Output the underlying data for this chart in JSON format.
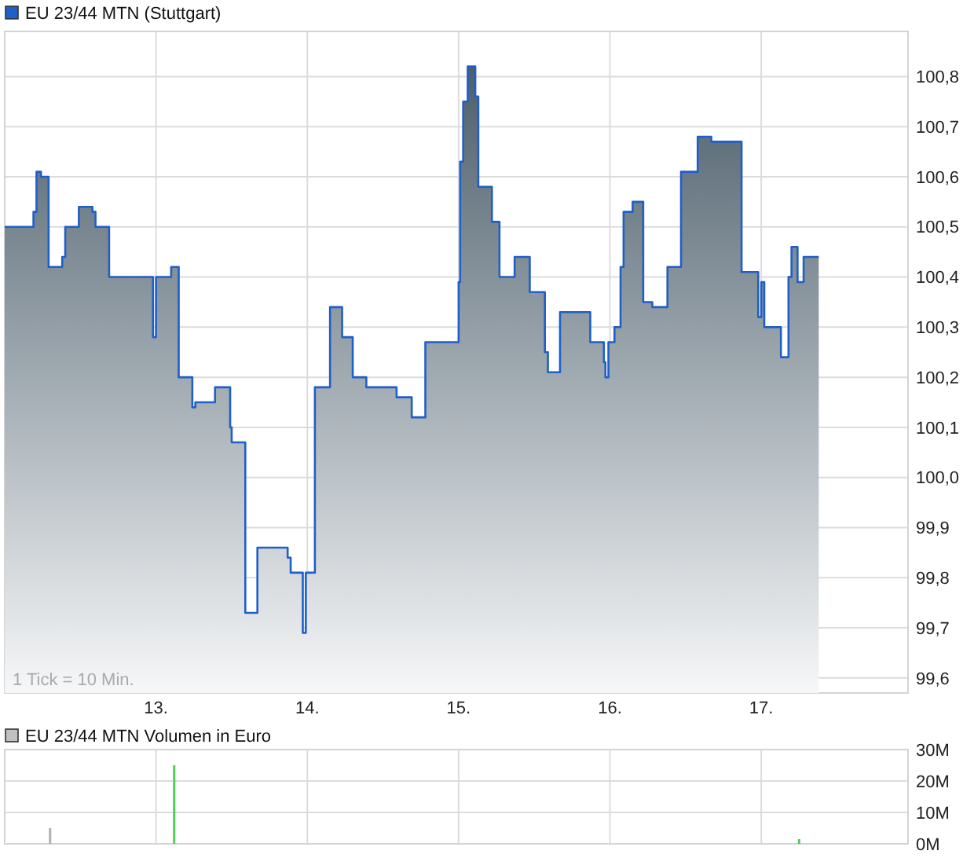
{
  "chart_data": [
    {
      "type": "area",
      "x": [
        12.0,
        12.19,
        12.19,
        12.21,
        12.21,
        12.24,
        12.24,
        12.29,
        12.29,
        12.38,
        12.38,
        12.4,
        12.4,
        12.49,
        12.49,
        12.58,
        12.58,
        12.6,
        12.6,
        12.69,
        12.69,
        12.98,
        12.98,
        13.0,
        13.0,
        13.1,
        13.1,
        13.15,
        13.15,
        13.24,
        13.24,
        13.26,
        13.26,
        13.39,
        13.39,
        13.49,
        13.49,
        13.5,
        13.5,
        13.59,
        13.59,
        13.67,
        13.67,
        13.87,
        13.87,
        13.89,
        13.89,
        13.97,
        13.97,
        13.99,
        13.99,
        14.05,
        14.05,
        14.15,
        14.15,
        14.23,
        14.23,
        14.3,
        14.3,
        14.39,
        14.39,
        14.59,
        14.59,
        14.69,
        14.69,
        14.78,
        14.78,
        15.0,
        15.0,
        15.01,
        15.01,
        15.03,
        15.03,
        15.06,
        15.06,
        15.11,
        15.11,
        15.13,
        15.13,
        15.22,
        15.22,
        15.27,
        15.27,
        15.37,
        15.37,
        15.47,
        15.47,
        15.57,
        15.57,
        15.59,
        15.59,
        15.67,
        15.67,
        15.87,
        15.87,
        15.96,
        15.96,
        15.97,
        15.97,
        15.99,
        15.99,
        16.03,
        16.03,
        16.07,
        16.07,
        16.09,
        16.09,
        16.15,
        16.15,
        16.22,
        16.22,
        16.28,
        16.28,
        16.38,
        16.38,
        16.47,
        16.47,
        16.58,
        16.58,
        16.67,
        16.67,
        16.87,
        16.87,
        16.98,
        16.98,
        17.0,
        17.0,
        17.02,
        17.02,
        17.13,
        17.13,
        17.18,
        17.18,
        17.2,
        17.2,
        17.24,
        17.24,
        17.28,
        17.28,
        17.38
      ],
      "series": [
        {
          "name": "EU 23/44 MTN (Stuttgart)",
          "color": "#1f5fc8",
          "values": [
            100.5,
            100.5,
            100.53,
            100.53,
            100.61,
            100.61,
            100.6,
            100.6,
            100.42,
            100.42,
            100.44,
            100.44,
            100.5,
            100.5,
            100.54,
            100.54,
            100.53,
            100.53,
            100.5,
            100.5,
            100.4,
            100.4,
            100.28,
            100.28,
            100.4,
            100.4,
            100.42,
            100.42,
            100.2,
            100.2,
            100.14,
            100.14,
            100.15,
            100.15,
            100.18,
            100.18,
            100.1,
            100.1,
            100.07,
            100.07,
            99.73,
            99.73,
            99.86,
            99.86,
            99.84,
            99.84,
            99.81,
            99.81,
            99.69,
            99.69,
            99.81,
            99.81,
            100.18,
            100.18,
            100.34,
            100.34,
            100.28,
            100.28,
            100.2,
            100.2,
            100.18,
            100.18,
            100.16,
            100.16,
            100.12,
            100.12,
            100.27,
            100.27,
            100.39,
            100.39,
            100.63,
            100.63,
            100.75,
            100.75,
            100.82,
            100.82,
            100.76,
            100.76,
            100.58,
            100.58,
            100.51,
            100.51,
            100.4,
            100.4,
            100.44,
            100.44,
            100.37,
            100.37,
            100.25,
            100.25,
            100.21,
            100.21,
            100.33,
            100.33,
            100.27,
            100.27,
            100.23,
            100.23,
            100.2,
            100.2,
            100.27,
            100.27,
            100.3,
            100.3,
            100.42,
            100.42,
            100.53,
            100.53,
            100.55,
            100.55,
            100.35,
            100.35,
            100.34,
            100.34,
            100.42,
            100.42,
            100.61,
            100.61,
            100.68,
            100.68,
            100.67,
            100.67,
            100.41,
            100.41,
            100.32,
            100.32,
            100.39,
            100.39,
            100.3,
            100.3,
            100.24,
            100.24,
            100.4,
            100.4,
            100.46,
            100.46,
            100.39,
            100.39,
            100.44,
            100.44
          ]
        }
      ],
      "xlim": [
        12.0,
        17.97
      ],
      "xticks": [
        {
          "value": 13,
          "label": "13."
        },
        {
          "value": 14,
          "label": "14."
        },
        {
          "value": 15,
          "label": "15."
        },
        {
          "value": 16,
          "label": "16."
        },
        {
          "value": 17,
          "label": "17."
        }
      ],
      "ylim": [
        99.57,
        100.89
      ],
      "yticks": [
        {
          "value": 99.6,
          "label": "99,6"
        },
        {
          "value": 99.7,
          "label": "99,7"
        },
        {
          "value": 99.8,
          "label": "99,8"
        },
        {
          "value": 99.9,
          "label": "99,9"
        },
        {
          "value": 100.0,
          "label": "100,0"
        },
        {
          "value": 100.1,
          "label": "100,1"
        },
        {
          "value": 100.2,
          "label": "100,2"
        },
        {
          "value": 100.3,
          "label": "100,3"
        },
        {
          "value": 100.4,
          "label": "100,4"
        },
        {
          "value": 100.5,
          "label": "100,5"
        },
        {
          "value": 100.6,
          "label": "100,6"
        },
        {
          "value": 100.7,
          "label": "100,7"
        },
        {
          "value": 100.8,
          "label": "100,8"
        }
      ],
      "grid": true,
      "legend": "top left",
      "annotations": [
        "1 Tick = 10 Min."
      ]
    },
    {
      "type": "bar",
      "x": [
        12.3,
        13.12,
        17.25
      ],
      "series": [
        {
          "name": "EU 23/44 MTN Volumen in Euro",
          "color": "#c0c0c0",
          "colors": [
            "#b0b0b0",
            "#55cc55",
            "#55cc55"
          ],
          "values": [
            5,
            25,
            1.5
          ]
        }
      ],
      "xlim": [
        12.0,
        17.97
      ],
      "xticks": [
        {
          "value": 13,
          "label": null
        },
        {
          "value": 14,
          "label": null
        },
        {
          "value": 15,
          "label": null
        },
        {
          "value": 16,
          "label": null
        },
        {
          "value": 17,
          "label": null
        }
      ],
      "ylim": [
        0,
        30
      ],
      "yticks": [
        {
          "value": 0,
          "label": "0M"
        },
        {
          "value": 10,
          "label": "10M"
        },
        {
          "value": 20,
          "label": "20M"
        },
        {
          "value": 30,
          "label": "30M"
        }
      ],
      "grid": true,
      "legend": "top left",
      "tick_labels": "y"
    }
  ]
}
